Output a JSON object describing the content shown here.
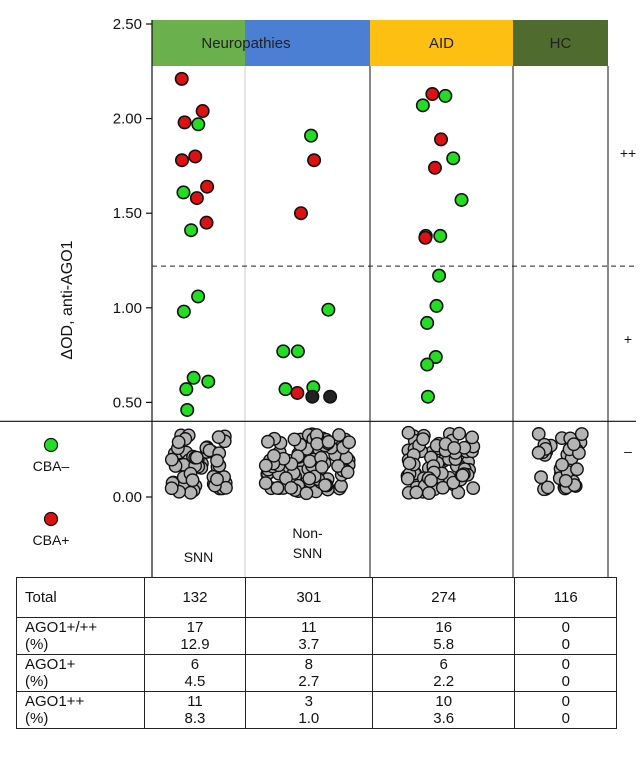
{
  "chart_data": {
    "type": "scatter",
    "ylabel": "ΔOD, anti-AGO1",
    "ylim": [
      -0.05,
      2.55
    ],
    "yticks": [
      "0.00",
      "0.50",
      "1.00",
      "1.50",
      "2.00",
      "2.50"
    ],
    "threshold_dashed": 1.22,
    "threshold_solid": 0.4,
    "levels": [
      "++",
      "+",
      "–"
    ],
    "bands": [
      {
        "label": "Neuropathies",
        "color": "#6ab04c"
      },
      {
        "label": "AID",
        "color": "#fdbf12"
      },
      {
        "label": "HC",
        "color": "#4f6b2d"
      }
    ],
    "groups": [
      "SNN",
      "Non-\nSNN",
      "",
      ""
    ],
    "legend": [
      {
        "label": "CBA–",
        "color": "#22dd22"
      },
      {
        "label": "CBA+",
        "color": "#dd1111"
      }
    ],
    "series": [
      {
        "group": 0,
        "green": [
          1.97,
          1.61,
          1.41,
          1.06,
          0.98,
          0.63,
          0.61,
          0.57,
          0.46
        ],
        "red": [
          2.21,
          2.04,
          1.98,
          1.8,
          1.78,
          1.64,
          1.58,
          1.45
        ],
        "dark": [],
        "gray_count": 60
      },
      {
        "group": 1,
        "green": [
          1.91,
          0.99,
          0.77,
          0.77,
          0.58,
          0.57
        ],
        "red": [
          1.78,
          1.5,
          0.55
        ],
        "dark": [
          0.53,
          0.53
        ],
        "gray_count": 100
      },
      {
        "group": 2,
        "green": [
          2.12,
          2.07,
          1.79,
          1.57,
          1.38,
          1.38,
          1.17,
          1.01,
          0.92,
          0.74,
          0.7,
          0.53
        ],
        "red": [
          2.13,
          1.89,
          1.74,
          1.37
        ],
        "dark": [],
        "gray_count": 85
      },
      {
        "group": 3,
        "green": [],
        "red": [],
        "dark": [],
        "gray_count": 35
      }
    ]
  },
  "table": {
    "rows": [
      {
        "label": "Total",
        "values": [
          "132",
          "301",
          "274",
          "116"
        ]
      },
      {
        "label": "AGO1+/++",
        "sub": "(%)",
        "values": [
          "17",
          "11",
          "16",
          "0"
        ],
        "pct": [
          "12.9",
          "3.7",
          "5.8",
          "0"
        ]
      },
      {
        "label": "AGO1+",
        "sub": "(%)",
        "values": [
          "6",
          "8",
          "6",
          "0"
        ],
        "pct": [
          "4.5",
          "2.7",
          "2.2",
          "0"
        ]
      },
      {
        "label": "AGO1++",
        "sub": "(%)",
        "values": [
          "11",
          "3",
          "10",
          "0"
        ],
        "pct": [
          "8.3",
          "1.0",
          "3.6",
          "0"
        ]
      }
    ]
  }
}
